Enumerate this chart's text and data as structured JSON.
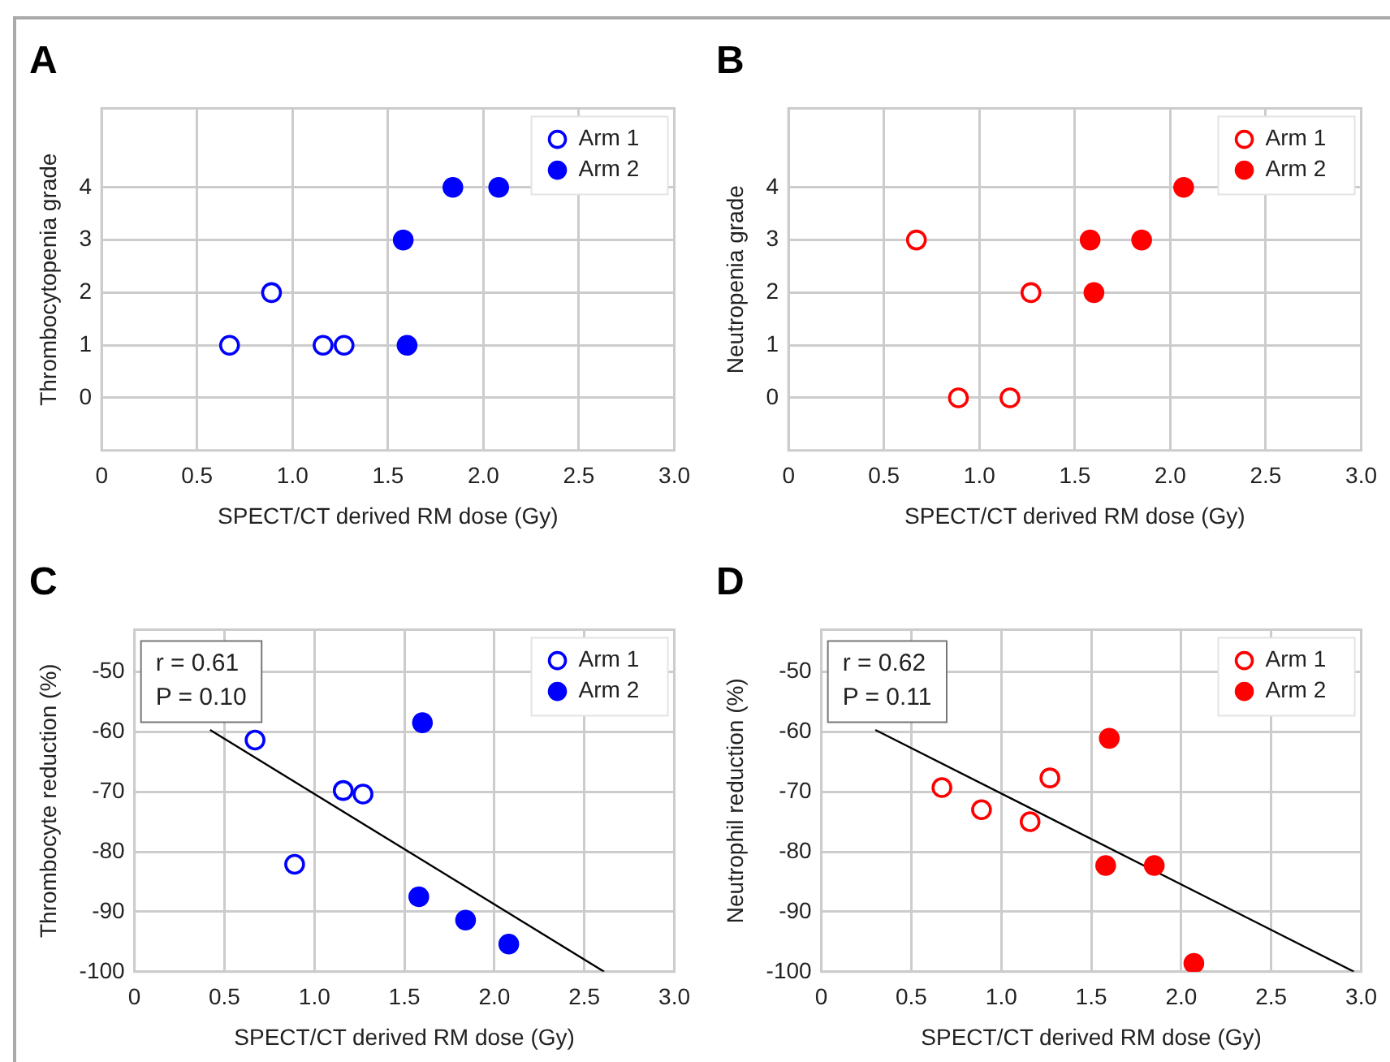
{
  "chart_data": [
    {
      "type": "scatter",
      "title": "A",
      "xlabel": "SPECT/CT derived RM dose (Gy)",
      "ylabel": "Thrombocytopenia grade",
      "xlim": [
        0,
        3
      ],
      "xticks": [
        0,
        0.5,
        {
          "value": 1,
          "label": "1.0"
        },
        1.5,
        {
          "value": 2,
          "label": "2.0"
        },
        2.5,
        {
          "value": 3,
          "label": "3.0"
        }
      ],
      "ylim": [
        -1,
        5.5
      ],
      "yticks": [
        0,
        1,
        2,
        3,
        4
      ],
      "grid": true,
      "legend": "top right",
      "marker": "circle",
      "series": [
        {
          "name": "Arm 1",
          "color": "#0000ff",
          "x": [
            0.67,
            0.89,
            1.16,
            1.27
          ],
          "values": [
            1,
            2,
            1,
            1
          ]
        },
        {
          "name": "Arm 2",
          "color": "#0000ff",
          "x": [
            1.58,
            1.6,
            1.84,
            2.08
          ],
          "values": [
            3,
            1,
            4,
            4
          ]
        }
      ]
    },
    {
      "type": "scatter",
      "title": "B",
      "xlabel": "SPECT/CT derived RM dose (Gy)",
      "ylabel": "Neutropenia grade",
      "xlim": [
        0,
        3
      ],
      "xticks": [
        0,
        0.5,
        {
          "value": 1,
          "label": "1.0"
        },
        1.5,
        {
          "value": 2,
          "label": "2.0"
        },
        2.5,
        {
          "value": 3,
          "label": "3.0"
        }
      ],
      "ylim": [
        -1,
        5.5
      ],
      "yticks": [
        0,
        1,
        2,
        3,
        4
      ],
      "grid": true,
      "legend": "top right",
      "marker": "circle",
      "series": [
        {
          "name": "Arm 1",
          "color": "#ff0000",
          "x": [
            0.67,
            0.89,
            1.16,
            1.27
          ],
          "values": [
            3,
            0,
            0,
            2
          ]
        },
        {
          "name": "Arm 2",
          "color": "#ff0000",
          "x": [
            1.58,
            1.6,
            1.85,
            2.07
          ],
          "values": [
            3,
            2,
            3,
            4
          ]
        }
      ]
    },
    {
      "type": "scatter",
      "title": "C",
      "xlabel": "SPECT/CT derived RM dose (Gy)",
      "ylabel": "Thrombocyte reduction (%)",
      "xlim": [
        0,
        3
      ],
      "xticks": [
        0,
        0.5,
        {
          "value": 1,
          "label": "1.0"
        },
        1.5,
        {
          "value": 2,
          "label": "2.0"
        },
        2.5,
        {
          "value": 3,
          "label": "3.0"
        }
      ],
      "ylim": [
        -100,
        -43
      ],
      "yticks": [
        -100,
        -90,
        -80,
        -70,
        -60,
        -50
      ],
      "grid": true,
      "legend": "top right",
      "marker": "circle",
      "annotations": [
        "r = 0.61",
        "P = 0.10"
      ],
      "series": [
        {
          "name": "Arm 1",
          "color": "#0000ff",
          "x": [
            0.67,
            0.89,
            1.16,
            1.27
          ],
          "values": [
            -61.4,
            -82.1,
            -69.8,
            -70.4
          ]
        },
        {
          "name": "Arm 2",
          "color": "#0000ff",
          "x": [
            1.6,
            1.58,
            1.84,
            2.08
          ],
          "values": [
            -58.5,
            -87.5,
            -91.4,
            -95.4
          ]
        },
        {
          "type": "line",
          "marker": "none",
          "color": "#000000",
          "x": [
            0.42,
            2.61
          ],
          "values": [
            -59.7,
            -100
          ]
        }
      ]
    },
    {
      "type": "scatter",
      "title": "D",
      "xlabel": "SPECT/CT derived RM dose (Gy)",
      "ylabel": "Neutrophil reduction (%)",
      "xlim": [
        0,
        3
      ],
      "xticks": [
        0,
        0.5,
        {
          "value": 1,
          "label": "1.0"
        },
        1.5,
        {
          "value": 2,
          "label": "2.0"
        },
        2.5,
        {
          "value": 3,
          "label": "3.0"
        }
      ],
      "ylim": [
        -100,
        -43
      ],
      "yticks": [
        -100,
        -90,
        -80,
        -70,
        -60,
        -50
      ],
      "grid": true,
      "legend": "top right",
      "marker": "circle",
      "annotations": [
        "r = 0.62",
        "P = 0.11"
      ],
      "series": [
        {
          "name": "Arm 1",
          "color": "#ff0000",
          "x": [
            0.67,
            0.89,
            1.16,
            1.27
          ],
          "values": [
            -69.3,
            -73.0,
            -75.0,
            -67.7
          ]
        },
        {
          "name": "Arm 2",
          "color": "#ff0000",
          "x": [
            1.6,
            1.58,
            1.85,
            2.07
          ],
          "values": [
            -61.1,
            -82.3,
            -82.3,
            -98.6
          ]
        },
        {
          "type": "line",
          "marker": "none",
          "color": "#000000",
          "x": [
            0.3,
            2.96
          ],
          "values": [
            -59.7,
            -100
          ]
        }
      ]
    }
  ]
}
